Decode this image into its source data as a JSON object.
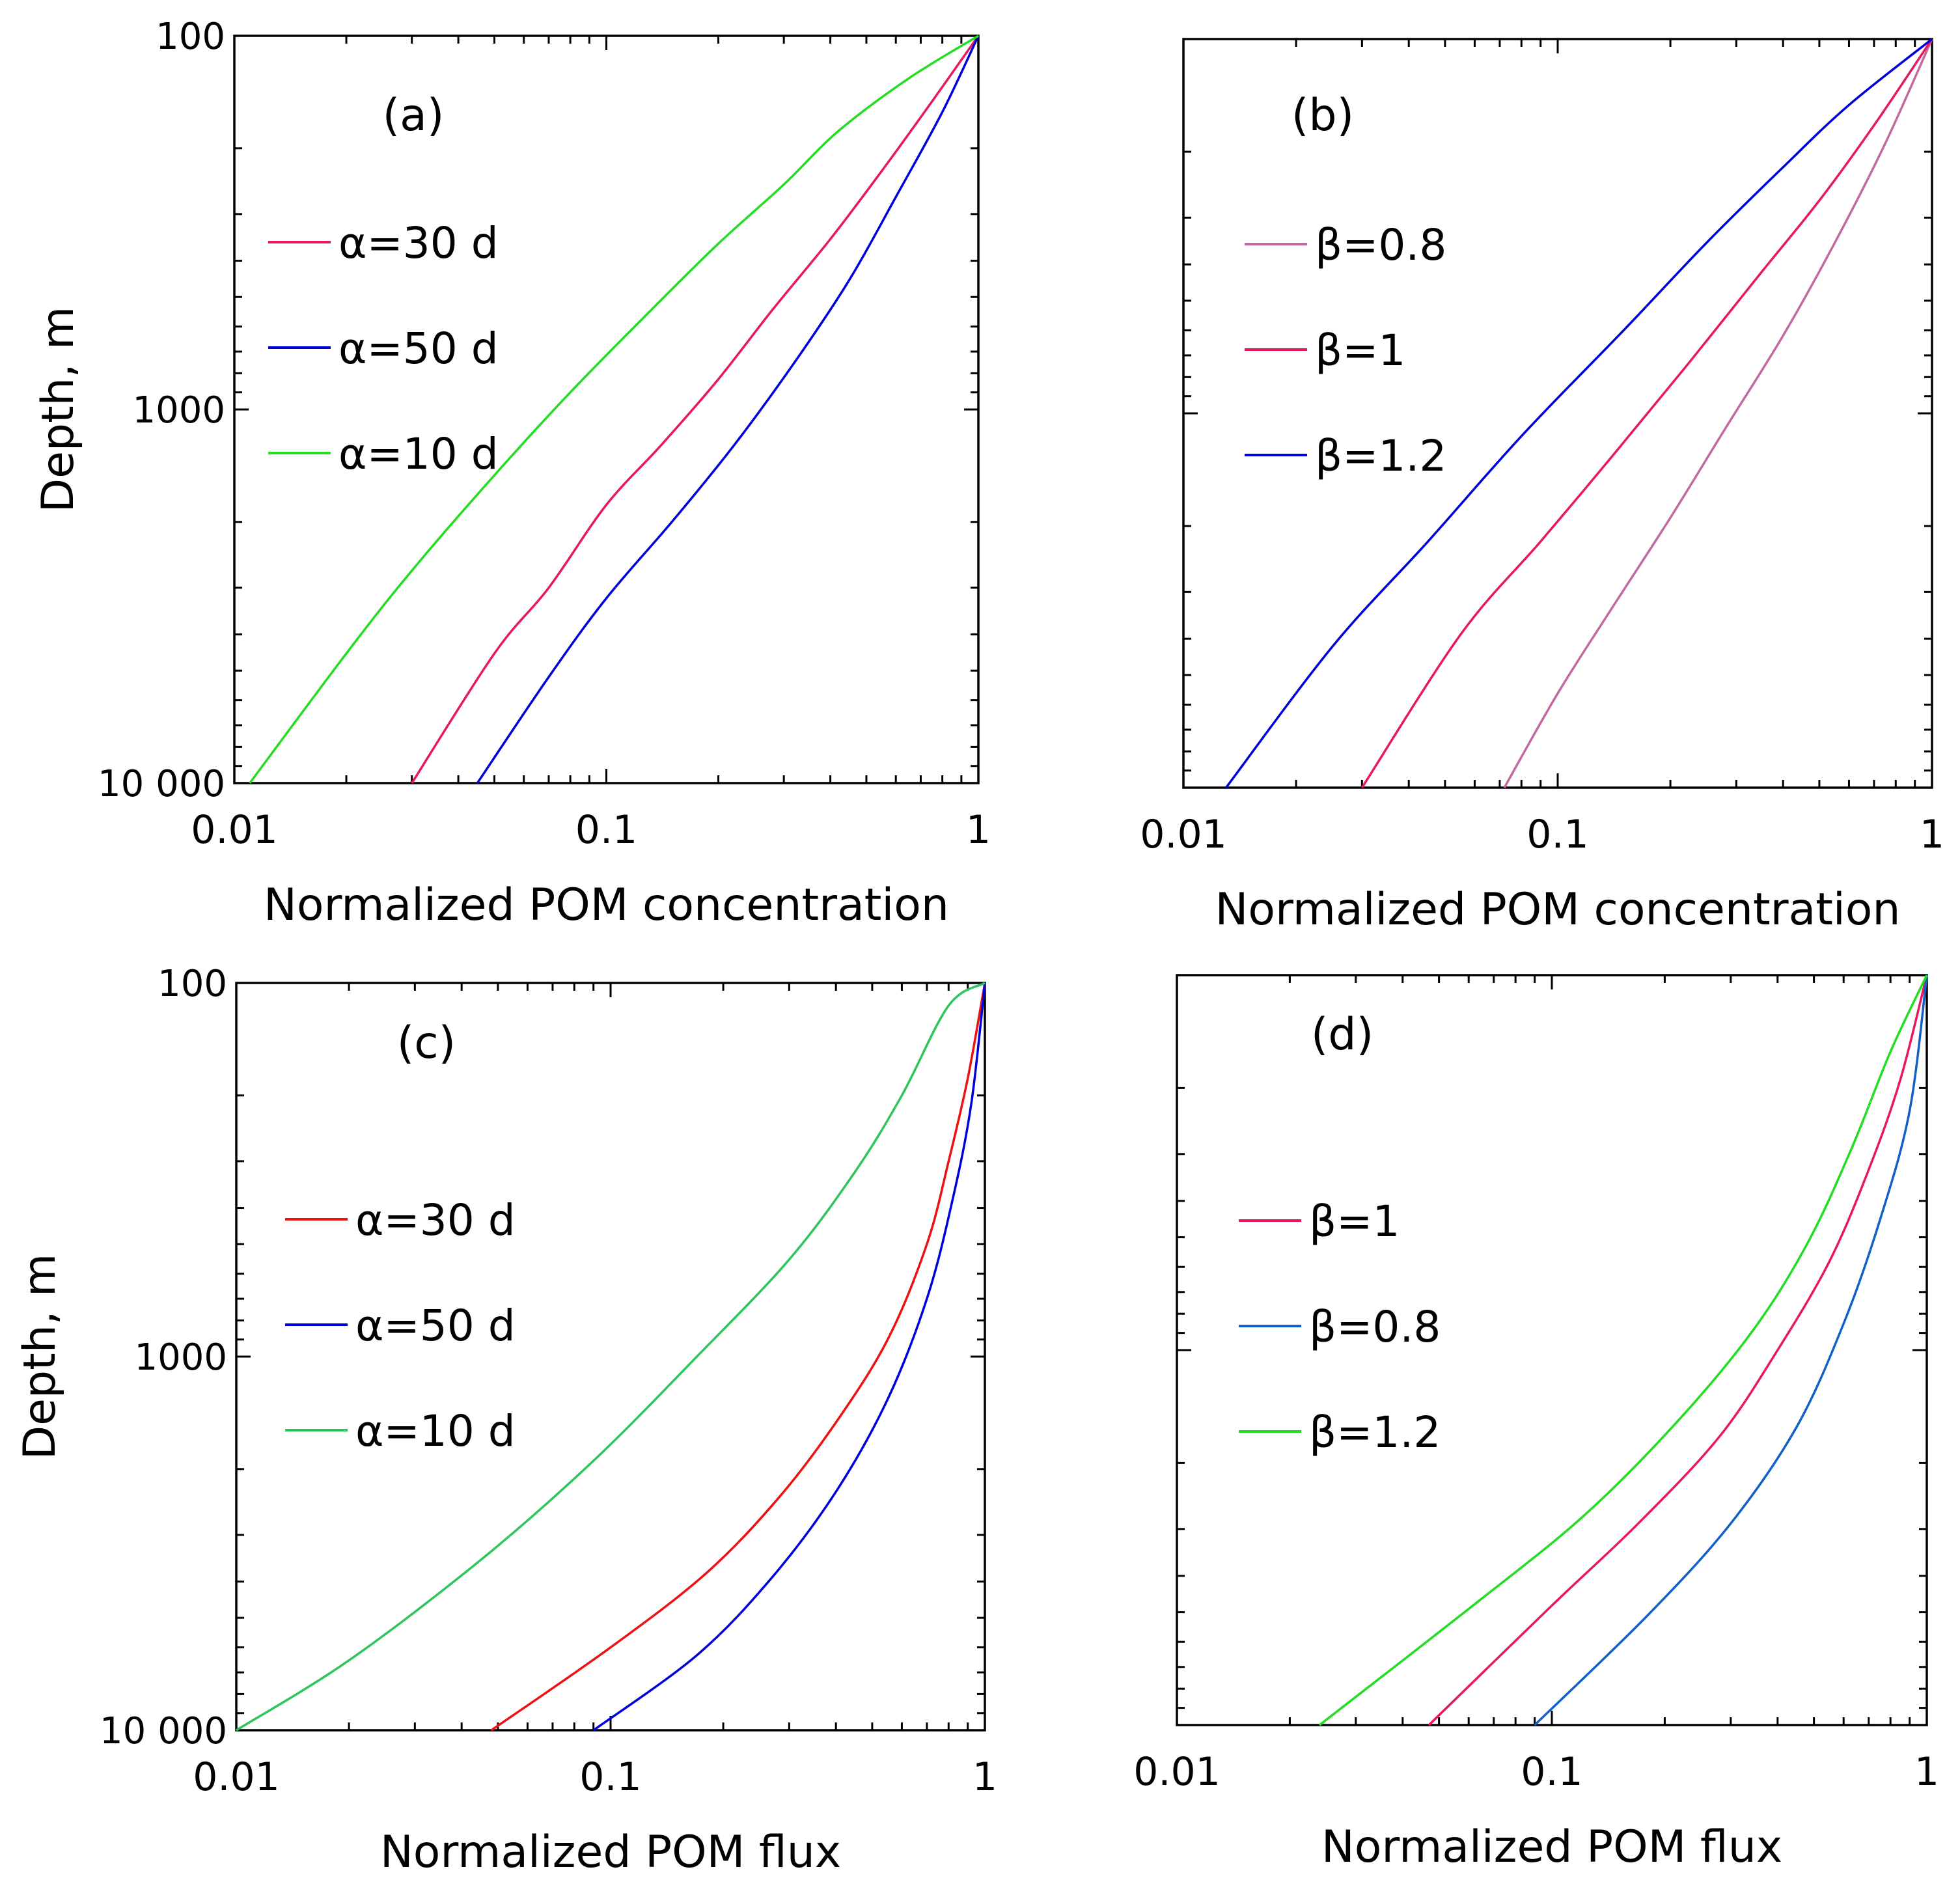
{
  "chart_data": [
    {
      "id": "a",
      "type": "line",
      "panel_label": "(a)",
      "xlabel": "Normalized POM concentration",
      "ylabel": "Depth, m",
      "x_scale": "log",
      "y_scale": "log",
      "y_inverted": true,
      "xlim": [
        0.01,
        1
      ],
      "ylim": [
        100,
        10000
      ],
      "x_tick_labels": [
        "0.01",
        "0.1",
        "1"
      ],
      "y_tick_labels": [
        "100",
        "1000",
        "10 000"
      ],
      "grid": false,
      "legend_location": "upper-left",
      "series": [
        {
          "name": "α=30 d",
          "color": "#e8185f",
          "x": [
            1.0,
            0.75,
            0.55,
            0.4,
            0.28,
            0.2,
            0.14,
            0.1,
            0.07,
            0.05,
            0.03
          ],
          "y": [
            100,
            150,
            230,
            350,
            540,
            830,
            1250,
            1800,
            3000,
            4500,
            10000
          ]
        },
        {
          "name": "α=50 d",
          "color": "#0000dc",
          "x": [
            1.0,
            0.8,
            0.6,
            0.45,
            0.32,
            0.22,
            0.15,
            0.1,
            0.07,
            0.045
          ],
          "y": [
            100,
            160,
            270,
            450,
            750,
            1250,
            2000,
            3200,
            5200,
            10000
          ]
        },
        {
          "name": "α=10 d",
          "color": "#22dd22",
          "x": [
            1.0,
            0.65,
            0.42,
            0.3,
            0.2,
            0.13,
            0.08,
            0.05,
            0.03,
            0.02,
            0.011
          ],
          "y": [
            100,
            130,
            180,
            250,
            360,
            550,
            900,
            1500,
            2700,
            4500,
            10000
          ]
        }
      ]
    },
    {
      "id": "b",
      "type": "line",
      "panel_label": "(b)",
      "xlabel": "Normalized POM concentration",
      "ylabel": "",
      "x_scale": "log",
      "y_scale": "log",
      "y_inverted": true,
      "xlim": [
        0.01,
        1
      ],
      "ylim": [
        100,
        10000
      ],
      "x_tick_labels": [
        "0.01",
        "0.1",
        "1"
      ],
      "y_tick_labels": [],
      "grid": false,
      "legend_location": "upper-left",
      "series": [
        {
          "name": "β=0.8",
          "color": "#c06aa0",
          "x": [
            1.0,
            0.75,
            0.55,
            0.4,
            0.28,
            0.2,
            0.14,
            0.1,
            0.072
          ],
          "y": [
            100,
            190,
            350,
            620,
            1100,
            1900,
            3300,
            5600,
            10000
          ]
        },
        {
          "name": "β=1",
          "color": "#e8185f",
          "x": [
            1.0,
            0.7,
            0.5,
            0.35,
            0.22,
            0.14,
            0.09,
            0.055,
            0.03
          ],
          "y": [
            100,
            170,
            270,
            420,
            750,
            1300,
            2200,
            3900,
            10000
          ]
        },
        {
          "name": "β=1.2",
          "color": "#0000dc",
          "x": [
            1.0,
            0.6,
            0.4,
            0.25,
            0.15,
            0.08,
            0.045,
            0.025,
            0.013
          ],
          "y": [
            100,
            150,
            220,
            350,
            600,
            1150,
            2200,
            4200,
            10000
          ]
        }
      ]
    },
    {
      "id": "c",
      "type": "line",
      "panel_label": "(c)",
      "xlabel": "Normalized POM flux",
      "ylabel": "Depth, m",
      "x_scale": "log",
      "y_scale": "log",
      "y_inverted": true,
      "xlim": [
        0.01,
        1
      ],
      "ylim": [
        100,
        10000
      ],
      "x_tick_labels": [
        "0.01",
        "0.1",
        "1"
      ],
      "y_tick_labels": [
        "100",
        "1000",
        "10 000"
      ],
      "grid": false,
      "legend_location": "center-left",
      "series": [
        {
          "name": "α=30 d",
          "color": "#ee1111",
          "x": [
            1.0,
            0.9,
            0.8,
            0.7,
            0.55,
            0.4,
            0.28,
            0.18,
            0.1,
            0.048
          ],
          "y": [
            100,
            180,
            300,
            500,
            900,
            1500,
            2400,
            3800,
            6000,
            10000
          ]
        },
        {
          "name": "α=50 d",
          "color": "#0000dc",
          "x": [
            1.0,
            0.92,
            0.82,
            0.7,
            0.55,
            0.4,
            0.27,
            0.17,
            0.09
          ],
          "y": [
            100,
            210,
            380,
            700,
            1300,
            2300,
            3900,
            6300,
            10000
          ]
        },
        {
          "name": "α=10 d",
          "color": "#2ec55c",
          "x": [
            1.0,
            0.8,
            0.6,
            0.45,
            0.3,
            0.17,
            0.09,
            0.045,
            0.02,
            0.01
          ],
          "y": [
            100,
            115,
            200,
            320,
            550,
            1000,
            1900,
            3500,
            6500,
            10000
          ]
        }
      ]
    },
    {
      "id": "d",
      "type": "line",
      "panel_label": "(d)",
      "xlabel": "Normalized POM flux",
      "ylabel": "",
      "x_scale": "log",
      "y_scale": "log",
      "y_inverted": true,
      "xlim": [
        0.01,
        1
      ],
      "ylim": [
        100,
        10000
      ],
      "x_tick_labels": [
        "0.01",
        "0.1",
        "1"
      ],
      "y_tick_labels": [],
      "grid": false,
      "legend_location": "center-left",
      "series": [
        {
          "name": "β=1",
          "color": "#e8185f",
          "x": [
            1.0,
            0.85,
            0.7,
            0.55,
            0.4,
            0.28,
            0.17,
            0.1,
            0.047
          ],
          "y": [
            100,
            190,
            330,
            580,
            1000,
            1700,
            2900,
            4800,
            10000
          ]
        },
        {
          "name": "β=0.8",
          "color": "#1060c8",
          "x": [
            1.0,
            0.9,
            0.75,
            0.6,
            0.45,
            0.3,
            0.18,
            0.09
          ],
          "y": [
            100,
            230,
            450,
            850,
            1600,
            2900,
            5100,
            10000
          ]
        },
        {
          "name": "β=1.2",
          "color": "#22dd22",
          "x": [
            1.0,
            0.8,
            0.63,
            0.48,
            0.34,
            0.21,
            0.12,
            0.06,
            0.024
          ],
          "y": [
            100,
            160,
            290,
            520,
            900,
            1600,
            2800,
            4900,
            10000
          ]
        }
      ]
    }
  ]
}
